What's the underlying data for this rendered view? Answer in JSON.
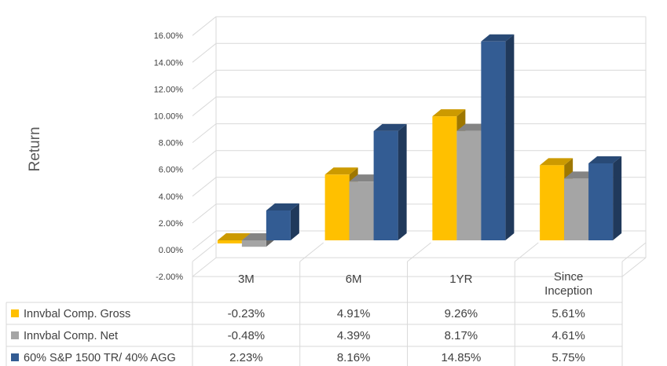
{
  "chart_data": {
    "type": "bar",
    "ylabel": "Return",
    "categories": [
      "3M",
      "6M",
      "1YR",
      "Since Inception"
    ],
    "y_ticks": [
      "-2.00%",
      "0.00%",
      "2.00%",
      "4.00%",
      "6.00%",
      "8.00%",
      "10.00%",
      "12.00%",
      "14.00%",
      "16.00%"
    ],
    "ylim": [
      -2,
      16
    ],
    "grid": true,
    "legend_placement": "data-table-left",
    "series": [
      {
        "name": "Innvbal Comp. Gross",
        "color": "#FFC000",
        "values": [
          -0.23,
          4.91,
          9.26,
          5.61
        ],
        "labels": [
          "-0.23%",
          "4.91%",
          "9.26%",
          "5.61%"
        ]
      },
      {
        "name": "Innvbal Comp. Net",
        "color": "#A5A5A5",
        "values": [
          -0.48,
          4.39,
          8.17,
          4.61
        ],
        "labels": [
          "-0.48%",
          "4.39%",
          "8.17%",
          "4.61%"
        ]
      },
      {
        "name": "60% S&P 1500 TR/ 40% AGG",
        "color": "#335C93",
        "values": [
          2.23,
          8.16,
          14.85,
          5.75
        ],
        "labels": [
          "2.23%",
          "8.16%",
          "14.85%",
          "5.75%"
        ]
      }
    ]
  }
}
